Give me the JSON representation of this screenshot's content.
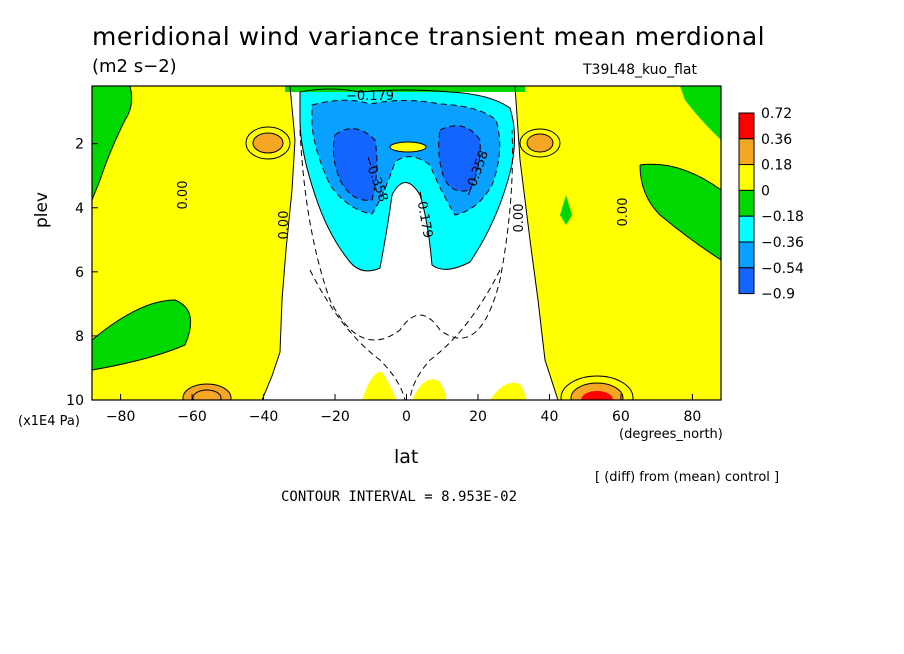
{
  "chart_data": {
    "type": "heatmap",
    "title": "meridional wind variance transient mean merdional",
    "units": "(m2 s−2)",
    "run_label": "T39L48_kuo_flat",
    "xlabel": "lat",
    "x_unit": "(degrees_north)",
    "ylabel": "plev",
    "y_unit": "(x1E4 Pa)",
    "x_ticks": [
      "−80",
      "−60",
      "−40",
      "−20",
      "0",
      "20",
      "40",
      "60",
      "80"
    ],
    "y_ticks": [
      "2",
      "4",
      "6",
      "8",
      "10"
    ],
    "xlim": [
      -88,
      88
    ],
    "ylim": [
      10,
      0.2
    ],
    "note": "[ (diff) from (mean) control ]",
    "contour_interval": "CONTOUR INTERVAL = 8.953E-02",
    "contour_labels": [
      "0.00",
      "0.00",
      "0.00",
      "0.00",
      "−0.358",
      "−0.358",
      "−0.179",
      "−0.179"
    ],
    "legend": {
      "levels": [
        "0.72",
        "0.36",
        "0.18",
        "0",
        "−0.18",
        "−0.36",
        "−0.54",
        "−0.9"
      ],
      "colors": [
        "#ff0000",
        "#f5a623",
        "#ffff00",
        "#00d800",
        "#00ffff",
        "#0aa0ff",
        "#1464ff"
      ]
    },
    "fields": [
      {
        "name": "west-yellow",
        "level": "0.18",
        "color": "#ffff00"
      },
      {
        "name": "east-yellow",
        "level": "0.18",
        "color": "#ffff00"
      },
      {
        "name": "center-green",
        "level": "0",
        "color": "#00d800"
      },
      {
        "name": "upper-trough",
        "level": "−0.54",
        "color": "#1464ff"
      },
      {
        "name": "west-maximum",
        "level": "0.36",
        "color": "#f5a623"
      },
      {
        "name": "surface-maximum",
        "level": "0.72",
        "color": "#ff0000"
      }
    ]
  }
}
